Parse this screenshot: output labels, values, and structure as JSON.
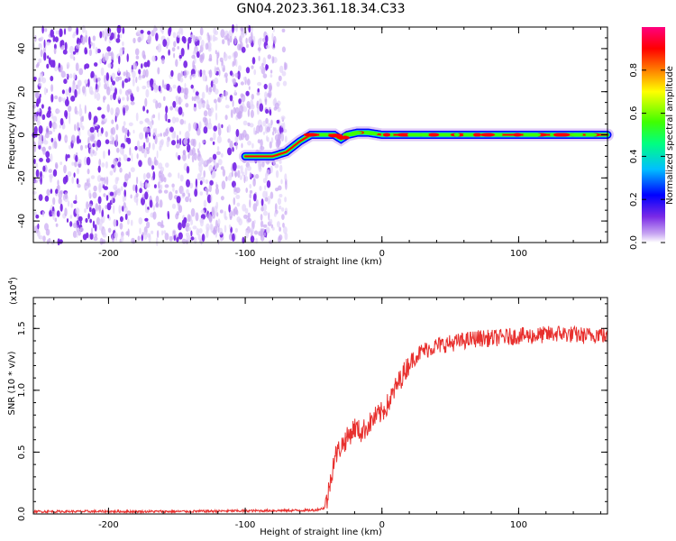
{
  "title": "GN04.2023.361.18.34.C33",
  "chart_data": [
    {
      "type": "heatmap",
      "xlabel": "Height of straight line (km)",
      "ylabel": "Frequency (Hz)",
      "xlim": [
        -255,
        165
      ],
      "ylim": [
        -50,
        50
      ],
      "xticks": [
        -200,
        -100,
        0,
        100
      ],
      "yticks": [
        -40,
        -20,
        0,
        20,
        40
      ],
      "colorbar": {
        "label": "Normalized spectral amplitude",
        "range": [
          0,
          1
        ],
        "ticks": [
          "0.0",
          "0.2",
          "0.4",
          "0.6",
          "0.8"
        ]
      },
      "signal_track": {
        "x": [
          -100,
          -80,
          -70,
          -60,
          -52,
          -35,
          -30,
          -25,
          -18,
          -10,
          0,
          20,
          50,
          100,
          165
        ],
        "y": [
          -10,
          -10,
          -8,
          -3,
          0,
          0,
          -2,
          0,
          1,
          1,
          0,
          0,
          0,
          0,
          0
        ]
      },
      "noise_region_x": [
        -255,
        -70
      ]
    },
    {
      "type": "line",
      "xlabel": "Height of straight line (km)",
      "ylabel": "SNR (10 * v/v)",
      "yscale_label": "(x10",
      "yscale_exp": "4",
      "yscale_close": ")",
      "xlim": [
        -255,
        165
      ],
      "ylim": [
        0,
        1.75
      ],
      "xticks": [
        -200,
        -100,
        0,
        100
      ],
      "yticks": [
        "0.0",
        "0.5",
        "1.0",
        "1.5"
      ],
      "series": [
        {
          "color": "#e8302e",
          "x": [
            -255,
            -150,
            -50,
            -45,
            -42,
            -40,
            -35,
            -30,
            -25,
            -20,
            -15,
            -10,
            -5,
            0,
            5,
            10,
            15,
            20,
            25,
            30,
            40,
            50,
            60,
            70,
            80,
            90,
            100,
            110,
            120,
            130,
            140,
            150,
            160,
            165
          ],
          "y": [
            0.02,
            0.02,
            0.03,
            0.04,
            0.05,
            0.12,
            0.45,
            0.55,
            0.62,
            0.7,
            0.66,
            0.72,
            0.78,
            0.82,
            0.9,
            1.02,
            1.12,
            1.22,
            1.28,
            1.32,
            1.36,
            1.38,
            1.4,
            1.42,
            1.42,
            1.43,
            1.44,
            1.44,
            1.45,
            1.46,
            1.45,
            1.44,
            1.46,
            1.42
          ]
        }
      ]
    }
  ]
}
